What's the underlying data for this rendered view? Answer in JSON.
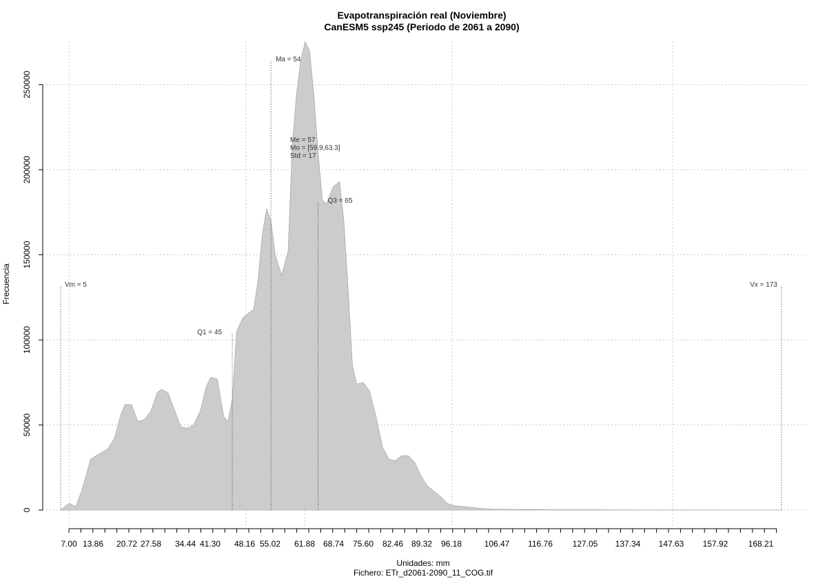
{
  "chart_data": {
    "type": "area",
    "title": "Evapotranspiración real (Noviembre)",
    "subtitle": "CanESM5 ssp245 (Periodo de 2061 a 2090)",
    "xlabel": "Unidades: mm",
    "ylabel": "Frecuencia",
    "footer": "Fichero: ETr_d2061-2090_11_COG.tif",
    "xlim": [
      5,
      173
    ],
    "ylim": [
      0,
      275000
    ],
    "grid": true,
    "fill_color": "#cccccc",
    "outline_color": "#999999",
    "x_tick_labels": [
      "7.00",
      "13.86",
      "20.72",
      "27.58",
      "34.44",
      "41.30",
      "48.16",
      "55.02",
      "61.88",
      "68.74",
      "75.60",
      "82.46",
      "89.32",
      "96.18",
      "106.47",
      "116.76",
      "127.05",
      "137.34",
      "147.63",
      "157.92",
      "168.21"
    ],
    "y_ticks": [
      0,
      50000,
      100000,
      150000,
      200000,
      250000
    ],
    "y_tick_labels": [
      "0",
      "50000",
      "100000",
      "150000",
      "200000",
      "250000"
    ],
    "x": [
      5,
      7,
      8.5,
      10,
      12,
      14,
      16,
      17.5,
      19,
      20,
      21.5,
      23,
      24.5,
      26,
      27.5,
      28.5,
      30,
      31.5,
      33,
      34.5,
      36,
      37.5,
      39,
      40,
      41.5,
      43,
      44,
      45,
      46,
      47.5,
      48.5,
      50,
      51,
      52,
      53,
      54,
      55,
      56.5,
      58,
      59,
      60,
      61,
      62,
      63,
      64,
      65,
      66,
      67,
      68.5,
      70,
      71,
      72,
      73,
      74,
      75.5,
      77,
      78.5,
      80,
      81.5,
      83,
      84.5,
      86,
      87.5,
      89,
      90.5,
      92,
      93.5,
      95,
      96,
      97,
      99,
      101,
      103,
      106,
      110,
      115,
      120,
      130,
      140,
      150,
      160,
      170,
      173
    ],
    "y": [
      0,
      4000,
      2000,
      12000,
      30000,
      33000,
      36000,
      42000,
      56000,
      62000,
      62000,
      52000,
      53000,
      58000,
      69000,
      71000,
      69000,
      59000,
      49000,
      48000,
      50000,
      58000,
      73000,
      78000,
      77000,
      55000,
      52000,
      65000,
      105000,
      113000,
      115000,
      118000,
      135000,
      162000,
      177000,
      170000,
      150000,
      138000,
      152000,
      215000,
      245000,
      265000,
      275000,
      270000,
      245000,
      210000,
      182000,
      180000,
      190000,
      193000,
      170000,
      130000,
      85000,
      74000,
      75000,
      70000,
      55000,
      37000,
      30000,
      29000,
      32000,
      32000,
      28000,
      20000,
      14000,
      11000,
      8000,
      4000,
      3000,
      2500,
      2000,
      1500,
      1000,
      600,
      400,
      300,
      200,
      150,
      100,
      80,
      60,
      30,
      0
    ],
    "annotations": {
      "vm": {
        "label": "Vm = 5",
        "x": 5,
        "line_top": 132000
      },
      "vx": {
        "label": "Vx = 173",
        "x": 173,
        "line_top": 132000
      },
      "q1": {
        "label": "Q1 = 45",
        "x": 45,
        "line_top": 104000
      },
      "q3": {
        "label": "Q3 = 65",
        "x": 65,
        "line_top": 181000
      },
      "ma": {
        "label": "Ma = 54",
        "x": 54,
        "line_top": 264000
      },
      "stats": [
        "Me = 57",
        "Mo = [59.9,63.3]",
        "Std = 17"
      ]
    }
  }
}
